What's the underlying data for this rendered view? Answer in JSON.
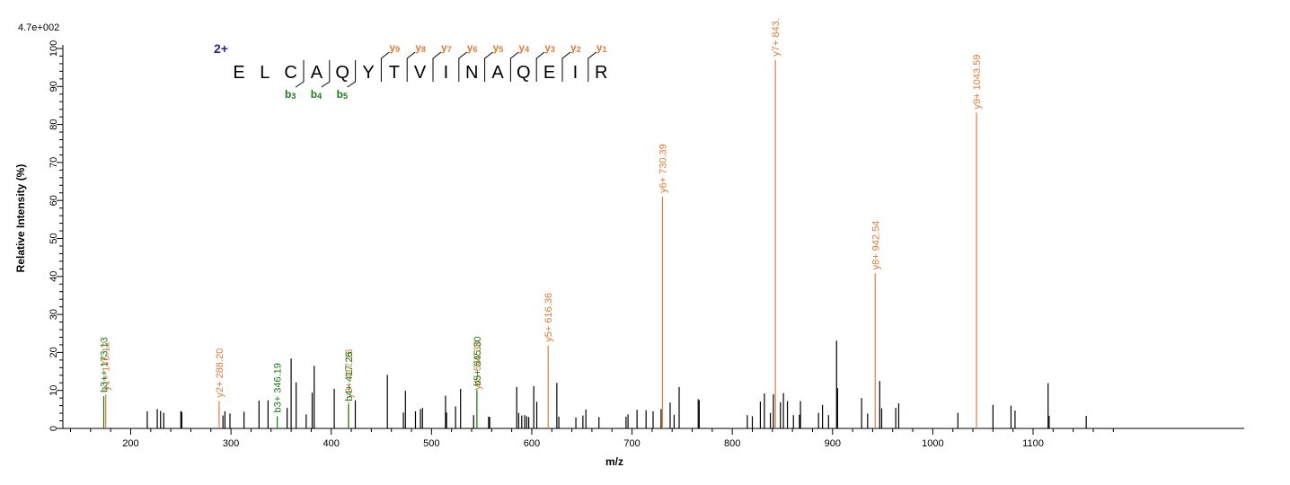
{
  "chart_data": {
    "type": "bar",
    "title": "",
    "max_intensity_label": "4.7e+002",
    "xlabel": "m/z",
    "ylabel": "Relative   Intensity (%)",
    "xlim": [
      140,
      1190
    ],
    "ylim": [
      0,
      100
    ],
    "x_ticks": [
      200,
      300,
      400,
      500,
      600,
      700,
      800,
      900,
      1000,
      1100
    ],
    "y_ticks": [
      0,
      10,
      20,
      30,
      40,
      50,
      60,
      70,
      80,
      90,
      100
    ],
    "grid": false,
    "legend": "none",
    "colors": {
      "y_ion": "#e07b39",
      "b_ion": "#1a7a1a",
      "unassigned": "#000000",
      "charge": "#1f1fa8",
      "axis": "#000000"
    },
    "unassigned_peaks": [
      [
        216.5,
        4.5
      ],
      [
        226.5,
        5.1
      ],
      [
        229.8,
        4.6
      ],
      [
        233,
        4.1
      ],
      [
        250,
        4.6
      ],
      [
        251,
        4.3
      ],
      [
        292,
        3.4
      ],
      [
        294,
        4.5
      ],
      [
        299,
        3.9
      ],
      [
        313,
        4.4
      ],
      [
        328,
        7.3
      ],
      [
        337,
        7.4
      ],
      [
        356,
        5.4
      ],
      [
        360,
        18.4
      ],
      [
        365,
        12.1
      ],
      [
        375,
        3.7
      ],
      [
        381,
        9.4
      ],
      [
        383,
        16.5
      ],
      [
        403,
        10.4
      ],
      [
        424,
        7.4
      ],
      [
        456,
        14.1
      ],
      [
        472,
        4.2
      ],
      [
        474,
        9.9
      ],
      [
        484,
        4.5
      ],
      [
        489,
        5.1
      ],
      [
        491,
        5.4
      ],
      [
        514,
        8.6
      ],
      [
        515,
        4.2
      ],
      [
        524,
        5.8
      ],
      [
        529,
        10.4
      ],
      [
        542,
        3.5
      ],
      [
        557,
        3.1
      ],
      [
        558,
        3.0
      ],
      [
        585,
        10.9
      ],
      [
        587,
        4.1
      ],
      [
        590,
        3.4
      ],
      [
        593,
        3.5
      ],
      [
        595,
        3.2
      ],
      [
        597,
        3.0
      ],
      [
        602,
        11.1
      ],
      [
        605,
        7.0
      ],
      [
        625,
        12.0
      ],
      [
        627,
        3.1
      ],
      [
        644,
        2.9
      ],
      [
        651,
        3.4
      ],
      [
        654,
        5.0
      ],
      [
        667,
        3.0
      ],
      [
        694,
        3.1
      ],
      [
        696,
        3.7
      ],
      [
        705,
        4.9
      ],
      [
        714,
        4.8
      ],
      [
        721,
        4.5
      ],
      [
        729,
        5.1
      ],
      [
        738,
        6.8
      ],
      [
        742,
        3.6
      ],
      [
        747,
        10.9
      ],
      [
        766,
        7.7
      ],
      [
        767,
        7.4
      ],
      [
        815,
        3.5
      ],
      [
        820,
        3.2
      ],
      [
        828,
        7.1
      ],
      [
        832,
        9.2
      ],
      [
        838,
        4.1
      ],
      [
        841,
        9.0
      ],
      [
        848,
        6.9
      ],
      [
        851,
        9.3
      ],
      [
        855,
        7.2
      ],
      [
        861,
        3.5
      ],
      [
        867,
        3.6
      ],
      [
        868,
        7.2
      ],
      [
        886,
        4.1
      ],
      [
        890,
        6.2
      ],
      [
        896,
        3.5
      ],
      [
        904,
        23.1
      ],
      [
        905,
        10.6
      ],
      [
        929,
        8.0
      ],
      [
        935,
        3.9
      ],
      [
        947,
        12.5
      ],
      [
        949,
        5.3
      ],
      [
        963,
        5.4
      ],
      [
        966,
        6.6
      ],
      [
        1025,
        4.1
      ],
      [
        1060,
        6.2
      ],
      [
        1078,
        6.0
      ],
      [
        1082,
        4.7
      ],
      [
        1115,
        11.9
      ],
      [
        1116,
        3.3
      ],
      [
        1153,
        3.3
      ]
    ],
    "y_ion_peaks": [
      {
        "x": 175.12,
        "y": 9.0,
        "label": "y1+ 175.12"
      },
      {
        "x": 288.2,
        "y": 7.2,
        "label": "y2+ 288.20"
      },
      {
        "x": 417.26,
        "y": 7.0,
        "label": "y3+ 417.26"
      },
      {
        "x": 545.3,
        "y": 9.2,
        "label": "y4+ 545.30"
      },
      {
        "x": 616.36,
        "y": 21.8,
        "label": "y5+ 616.36"
      },
      {
        "x": 730.39,
        "y": 61.0,
        "label": "y6+ 730.39"
      },
      {
        "x": 843.0,
        "y": 97.0,
        "label": "y7+ 843."
      },
      {
        "x": 942.54,
        "y": 40.8,
        "label": "y8+ 942.54"
      },
      {
        "x": 1043.59,
        "y": 83.1,
        "label": "y9+ 1043.59"
      }
    ],
    "b_ion_peaks": [
      {
        "x": 173.13,
        "y": 8.5,
        "label": "b3++ 173.13"
      },
      {
        "x": 346.19,
        "y": 3.2,
        "label": "b3+ 346.19"
      },
      {
        "x": 417.26,
        "y": 6.2,
        "label": "b4+ 417.26"
      },
      {
        "x": 545.3,
        "y": 10.2,
        "label": "b5+ 545.30"
      }
    ],
    "sequence": {
      "charge": "2+",
      "residues": [
        "E",
        "L",
        "C",
        "A",
        "Q",
        "Y",
        "T",
        "V",
        "I",
        "N",
        "A",
        "Q",
        "E",
        "I",
        "R"
      ],
      "y_ions": [
        {
          "letter": "y",
          "sub": "9",
          "after": 6
        },
        {
          "letter": "y",
          "sub": "8",
          "after": 7
        },
        {
          "letter": "y",
          "sub": "7",
          "after": 8
        },
        {
          "letter": "y",
          "sub": "6",
          "after": 9
        },
        {
          "letter": "y",
          "sub": "5",
          "after": 10
        },
        {
          "letter": "y",
          "sub": "4",
          "after": 11
        },
        {
          "letter": "y",
          "sub": "3",
          "after": 12
        },
        {
          "letter": "y",
          "sub": "2",
          "after": 13
        },
        {
          "letter": "y",
          "sub": "1",
          "after": 14
        }
      ],
      "b_ions": [
        {
          "letter": "b",
          "sub": "3",
          "after": 3
        },
        {
          "letter": "b",
          "sub": "4",
          "after": 4
        },
        {
          "letter": "b",
          "sub": "5",
          "after": 5
        }
      ]
    }
  }
}
